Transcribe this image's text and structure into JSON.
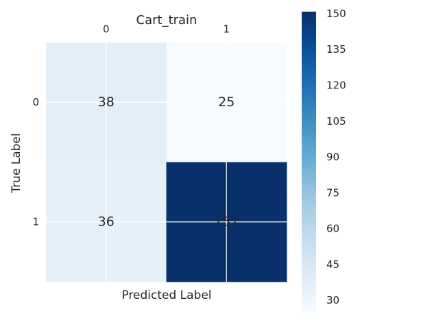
{
  "chart_data": {
    "type": "heatmap",
    "title": "Cart_train",
    "x_label": "Predicted Label",
    "y_label": "True Label",
    "x_categories": [
      "0",
      "1"
    ],
    "y_categories": [
      "0",
      "1"
    ],
    "values": [
      [
        38,
        25
      ],
      [
        36,
        151
      ]
    ],
    "colormap": "Blues",
    "clim": [
      25,
      151
    ],
    "cticks": [
      30,
      45,
      60,
      75,
      90,
      105,
      120,
      135,
      150
    ],
    "grid": true
  }
}
